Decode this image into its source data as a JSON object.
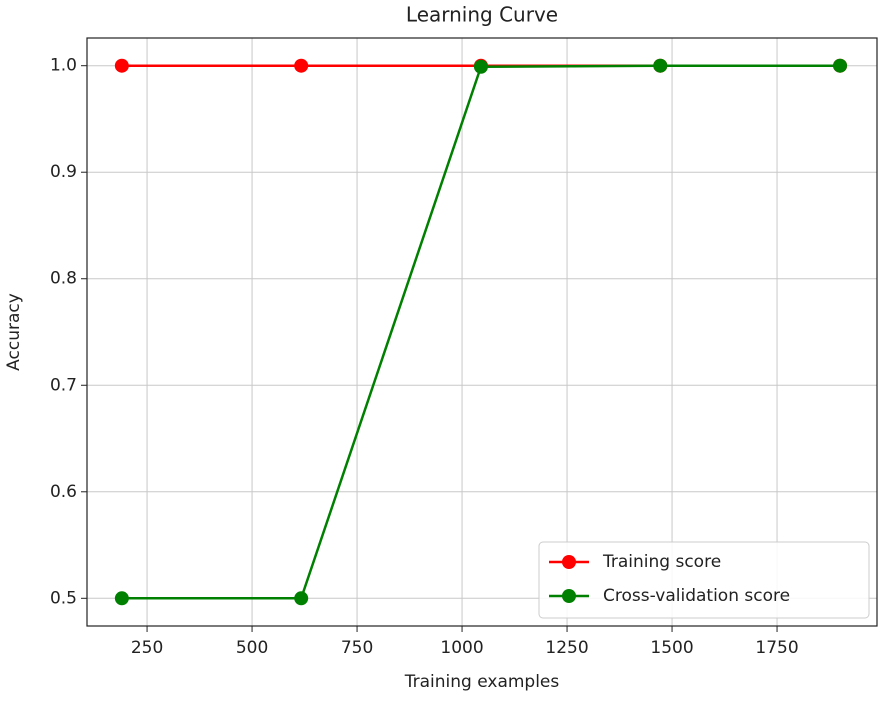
{
  "chart_data": {
    "type": "line",
    "title": "Learning Curve",
    "x_label": "Training examples",
    "y_label": "Accuracy",
    "x": [
      190,
      617,
      1045,
      1472,
      1900
    ],
    "series": [
      {
        "name": "Training score",
        "color": "#ff0000",
        "values": [
          1.0,
          1.0,
          1.0,
          1.0,
          1.0
        ]
      },
      {
        "name": "Cross-validation score",
        "color": "#008000",
        "values": [
          0.5,
          0.5,
          0.999,
          1.0,
          1.0
        ]
      }
    ],
    "xlim": [
      107,
      1988
    ],
    "xticks": [
      250,
      500,
      750,
      1000,
      1250,
      1500,
      1750
    ],
    "ylim": [
      0.474,
      1.026
    ],
    "yticks": [
      0.5,
      0.6,
      0.7,
      0.8,
      0.9,
      {
        "value": 1,
        "label": "1.0"
      }
    ],
    "grid": true,
    "legend": "lower right"
  }
}
